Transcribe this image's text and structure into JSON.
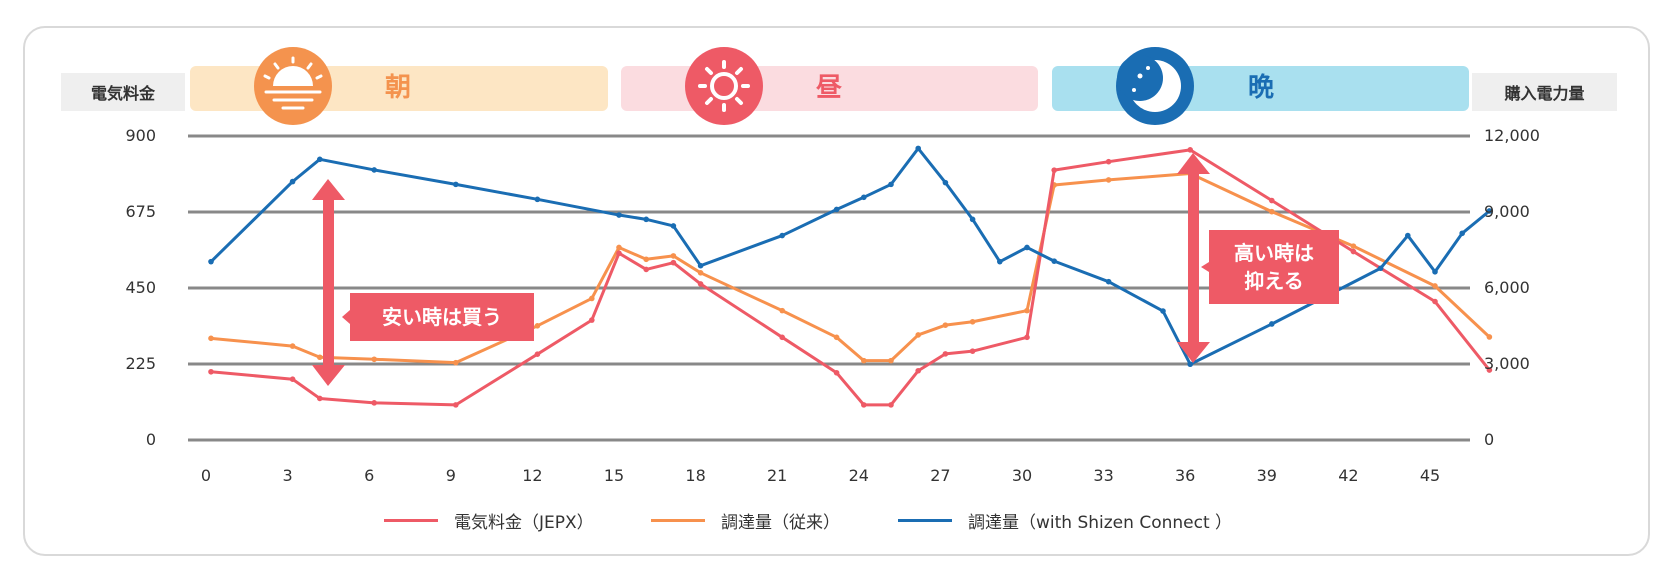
{
  "colors": {
    "price": "#ee5a66",
    "conventional": "#f7914d",
    "shizen": "#1a6db3"
  },
  "header": {
    "left_axis_title": "電気料金",
    "right_axis_title": "購入電力量",
    "bands": [
      {
        "label": "朝",
        "icon": "sunrise-icon",
        "bg": "#fde6c4",
        "accent": "#f4934e"
      },
      {
        "label": "昼",
        "icon": "sun-icon",
        "bg": "#fbdce0",
        "accent": "#ee5a66"
      },
      {
        "label": "晩",
        "icon": "moon-icon",
        "bg": "#a9e0ef",
        "accent": "#1a6db3"
      }
    ]
  },
  "annotations": [
    {
      "text_lines": [
        "安い時は買う"
      ]
    },
    {
      "text_lines": [
        "高い時は",
        "抑える"
      ]
    }
  ],
  "chart_data": {
    "type": "line",
    "xlabel": "",
    "ylabel": "電気料金",
    "y2label": "購入電力量",
    "xlim": [
      0,
      47
    ],
    "ylim": [
      0,
      900
    ],
    "y2lim": [
      0,
      12000
    ],
    "x_ticks": [
      "0",
      "3",
      "6",
      "9",
      "12",
      "15",
      "18",
      "21",
      "24",
      "27",
      "30",
      "33",
      "36",
      "39",
      "42",
      "45"
    ],
    "y_ticks": [
      "900",
      "675",
      "450",
      "225",
      "0"
    ],
    "y2_ticks": [
      "12,000",
      "9,000",
      "6,000",
      "3,000",
      "0"
    ],
    "grid": true,
    "legend_position": "bottom",
    "series": [
      {
        "name": "電気料金（JEPX）",
        "axis": "left",
        "x": [
          0,
          3,
          4,
          6,
          9,
          12,
          14,
          15,
          16,
          17,
          18,
          21,
          23,
          24,
          25,
          26,
          27,
          28,
          30,
          31,
          33,
          36,
          39,
          42,
          45,
          47
        ],
        "values": [
          202,
          180,
          123,
          110,
          104,
          254,
          355,
          553,
          505,
          525,
          462,
          304,
          199,
          104,
          104,
          205,
          255,
          263,
          304,
          799,
          824,
          859,
          709,
          558,
          410,
          207
        ]
      },
      {
        "name": "調達量（従来）",
        "axis": "left",
        "x": [
          0,
          3,
          4,
          6,
          9,
          12,
          14,
          15,
          16,
          17,
          18,
          21,
          23,
          24,
          25,
          26,
          27,
          28,
          30,
          31,
          33,
          36,
          39,
          42,
          45,
          47
        ],
        "values": [
          301,
          278,
          245,
          239,
          229,
          338,
          419,
          570,
          535,
          545,
          495,
          383,
          304,
          235,
          235,
          311,
          340,
          350,
          383,
          755,
          770,
          789,
          676,
          574,
          456,
          305
        ]
      },
      {
        "name": "調達量（with  Shizen Connect ）",
        "axis": "right",
        "x": [
          0,
          3,
          4,
          6,
          9,
          12,
          15,
          16,
          17,
          18,
          21,
          23,
          24,
          25,
          26,
          27,
          28,
          29,
          30,
          31,
          33,
          35,
          36,
          39,
          43,
          44,
          45,
          46,
          47
        ],
        "values": [
          7040,
          10200,
          11080,
          10660,
          10090,
          9500,
          8880,
          8710,
          8450,
          6880,
          8070,
          9100,
          9580,
          10090,
          11510,
          10160,
          8710,
          7040,
          7600,
          7060,
          6250,
          5090,
          2990,
          4580,
          6780,
          8070,
          6640,
          8160,
          9040
        ]
      }
    ]
  }
}
